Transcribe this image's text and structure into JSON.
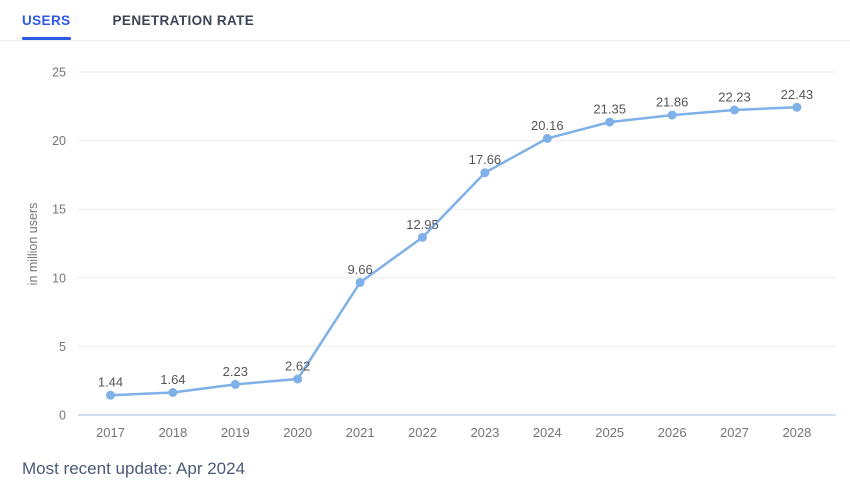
{
  "tab_bar": {
    "tabs": [
      {
        "label": "USERS",
        "active": true
      },
      {
        "label": "PENETRATION RATE",
        "active": false
      }
    ]
  },
  "footer": {
    "text": "Most recent update: Apr 2024"
  },
  "colors": {
    "accent_blue": "#2d5ae6",
    "line_blue": "#7fb0e8",
    "inactive_tab_text": "#3b4556",
    "gridline": "#ececec",
    "zero_axis": "#c3d3e8",
    "tick_text": "#757575",
    "data_label_text": "#565656",
    "footer_text": "#4b5a78"
  },
  "chart_data": {
    "type": "line",
    "title": "",
    "categories": [
      "2017",
      "2018",
      "2019",
      "2020",
      "2021",
      "2022",
      "2023",
      "2024",
      "2025",
      "2026",
      "2027",
      "2028"
    ],
    "values": [
      1.44,
      1.64,
      2.23,
      2.62,
      9.66,
      12.95,
      17.66,
      20.16,
      21.35,
      21.86,
      22.23,
      22.43
    ],
    "point_labels": [
      "1.44",
      "1.64",
      "2.23",
      "2.62",
      "9.66",
      "12.95",
      "17.66",
      "20.16",
      "21.35",
      "21.86",
      "22.23",
      "22.43"
    ],
    "xlabel": "",
    "ylabel": "in million users",
    "ylim": [
      0,
      25
    ],
    "yticks": [
      0,
      5,
      10,
      15,
      20,
      25
    ],
    "grid": "horizontal",
    "legend": "none"
  }
}
